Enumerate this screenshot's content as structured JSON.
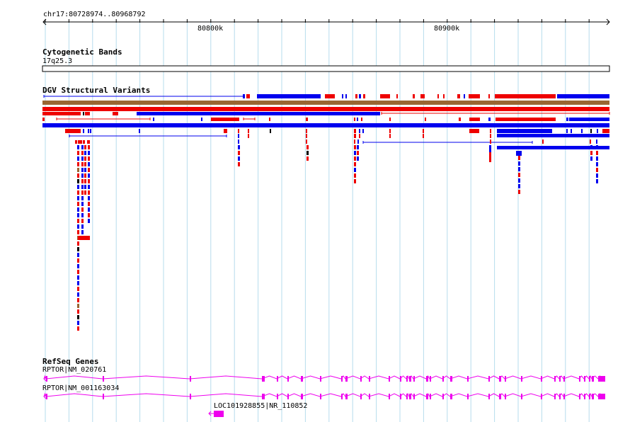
{
  "ruler": {
    "location_label": "chr17:80728974..80968792",
    "tick_labels": [
      "80800k",
      "80900k"
    ]
  },
  "tracks": {
    "cytoband": {
      "title": "Cytogenetic Bands",
      "band_label": "17q25.3"
    },
    "dgv": {
      "title": "DGV Structural Variants"
    },
    "refseq": {
      "title": "RefSeq Genes",
      "genes": [
        {
          "label": "RPTOR|NM_020761"
        },
        {
          "label": "RPTOR|NM_001163034"
        },
        {
          "label": "LOC101928855|NR_110852"
        }
      ]
    }
  },
  "colors": {
    "gain": "#0000ee",
    "loss": "#ee0000",
    "gain_loss": "#996633",
    "complex": "#000000",
    "gene": "#ee00ee",
    "grid": "#b6dcec"
  },
  "icons": {
    "ruler_left": "arrow-left-icon",
    "ruler_right": "arrow-right-icon",
    "gene_direction": "chevron-right-icon"
  }
}
